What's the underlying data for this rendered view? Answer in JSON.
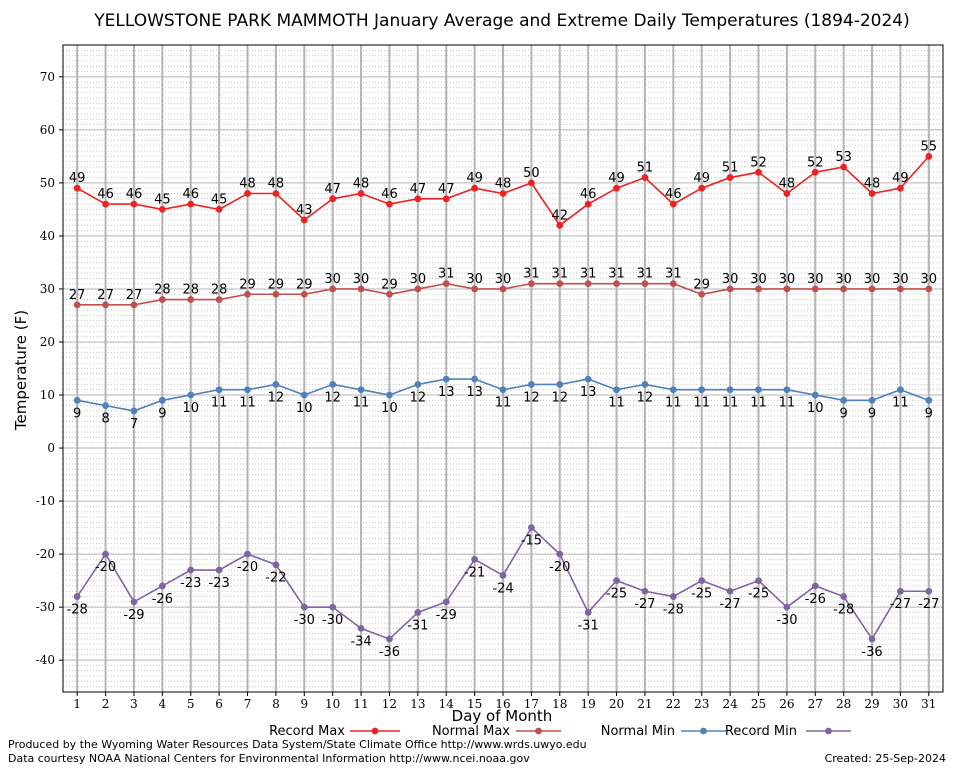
{
  "chart_data": {
    "type": "line",
    "title": "YELLOWSTONE PARK MAMMOTH January Average and Extreme Daily Temperatures (1894-2024)",
    "xlabel": "Day of Month",
    "ylabel": "Temperature (F)",
    "xlim": [
      0.5,
      31.5
    ],
    "ylim": [
      -46,
      76
    ],
    "yticks": [
      -40,
      -30,
      -20,
      -10,
      0,
      10,
      20,
      30,
      40,
      50,
      60,
      70
    ],
    "x": [
      1,
      2,
      3,
      4,
      5,
      6,
      7,
      8,
      9,
      10,
      11,
      12,
      13,
      14,
      15,
      16,
      17,
      18,
      19,
      20,
      21,
      22,
      23,
      24,
      25,
      26,
      27,
      28,
      29,
      30,
      31
    ],
    "grid": true,
    "legend_position": "bottom",
    "series": [
      {
        "name": "Record Max",
        "color": "#ee2222",
        "label_position": "above",
        "values": [
          49,
          46,
          46,
          45,
          46,
          45,
          48,
          48,
          43,
          47,
          48,
          46,
          47,
          47,
          49,
          48,
          50,
          42,
          46,
          49,
          51,
          46,
          49,
          51,
          52,
          48,
          52,
          53,
          48,
          49,
          55
        ]
      },
      {
        "name": "Normal Max",
        "color": "#c0504d",
        "label_position": "above",
        "values": [
          27,
          27,
          27,
          28,
          28,
          28,
          29,
          29,
          29,
          30,
          30,
          29,
          30,
          31,
          30,
          30,
          31,
          31,
          31,
          31,
          31,
          31,
          29,
          30,
          30,
          30,
          30,
          30,
          30,
          30,
          30
        ]
      },
      {
        "name": "Normal Min",
        "color": "#4f81bd",
        "label_position": "below",
        "values": [
          9,
          8,
          7,
          9,
          10,
          11,
          11,
          12,
          10,
          12,
          11,
          10,
          12,
          13,
          13,
          11,
          12,
          12,
          13,
          11,
          12,
          11,
          11,
          11,
          11,
          11,
          10,
          9,
          9,
          11,
          9
        ]
      },
      {
        "name": "Record Min",
        "color": "#8064a2",
        "label_position": "below",
        "values": [
          -28,
          -20,
          -29,
          -26,
          -23,
          -23,
          -20,
          -22,
          -30,
          -30,
          -34,
          -36,
          -31,
          -29,
          -21,
          -24,
          -15,
          -20,
          -31,
          -25,
          -27,
          -28,
          -25,
          -27,
          -25,
          -30,
          -26,
          -28,
          -36,
          -27,
          -27
        ]
      }
    ]
  },
  "footer": {
    "produced_by": "Produced by the Wyoming Water Resources Data System/State Climate Office http://www.wrds.uwyo.edu",
    "data_courtesy": "Data courtesy NOAA National Centers for Environmental Information http://www.ncei.noaa.gov",
    "created": "Created: 25-Sep-2024"
  }
}
